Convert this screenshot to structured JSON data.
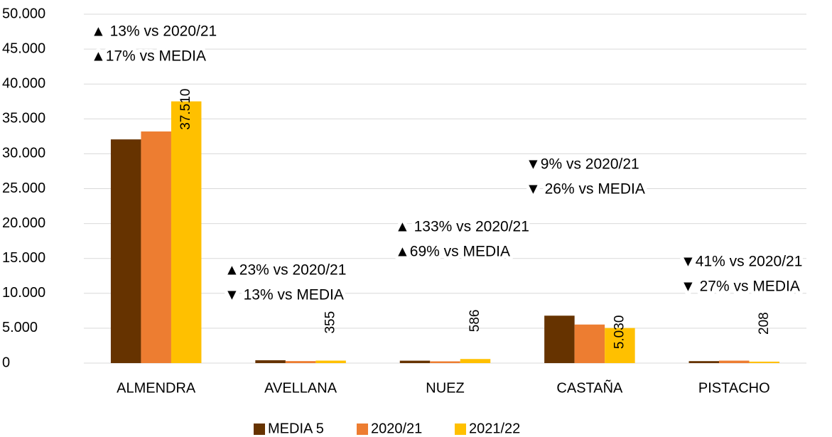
{
  "chart_data": {
    "type": "bar",
    "categories": [
      "ALMENDRA",
      "AVELLANA",
      "NUEZ",
      "CASTAÑA",
      "PISTACHO"
    ],
    "series": [
      {
        "name": "MEDIA 5",
        "color": "#663300",
        "values": [
          32060,
          408,
          347,
          6797,
          285
        ]
      },
      {
        "name": "2020/21",
        "color": "#ed7d31",
        "values": [
          33195,
          289,
          252,
          5527,
          352
        ]
      },
      {
        "name": "2021/22",
        "color": "#ffc000",
        "values": [
          37510,
          355,
          586,
          5030,
          208
        ],
        "value_labels": [
          "37.510",
          "355",
          "586",
          "5.030",
          "208"
        ]
      }
    ],
    "ylim": [
      0,
      50000
    ],
    "yticks": [
      0,
      {
        "value": 5000,
        "label": "5.000"
      },
      {
        "value": 10000,
        "label": "10.000"
      },
      {
        "value": 15000,
        "label": "15.000"
      },
      {
        "value": 20000,
        "label": "20.000"
      },
      {
        "value": 25000,
        "label": "25.000"
      },
      {
        "value": 30000,
        "label": "30.000"
      },
      {
        "value": 35000,
        "label": "35.000"
      },
      {
        "value": 40000,
        "label": "40.000"
      },
      {
        "value": 45000,
        "label": "45.000"
      },
      {
        "value": 50000,
        "label": "50.000"
      }
    ],
    "grid": true,
    "legend": "bottom",
    "annotations": [
      {
        "lines": [
          "▲ 13% vs 2020/21",
          "▲17% vs MEDIA"
        ]
      },
      {
        "lines": [
          "▲23% vs 2020/21",
          "▼ 13% vs MEDIA"
        ]
      },
      {
        "lines": [
          "▲ 133% vs 2020/21",
          "▲69% vs MEDIA"
        ]
      },
      {
        "lines": [
          "▼9% vs 2020/21",
          "▼ 26% vs MEDIA"
        ]
      },
      {
        "lines": [
          "▼41% vs 2020/21",
          "▼ 27% vs MEDIA"
        ]
      }
    ]
  }
}
